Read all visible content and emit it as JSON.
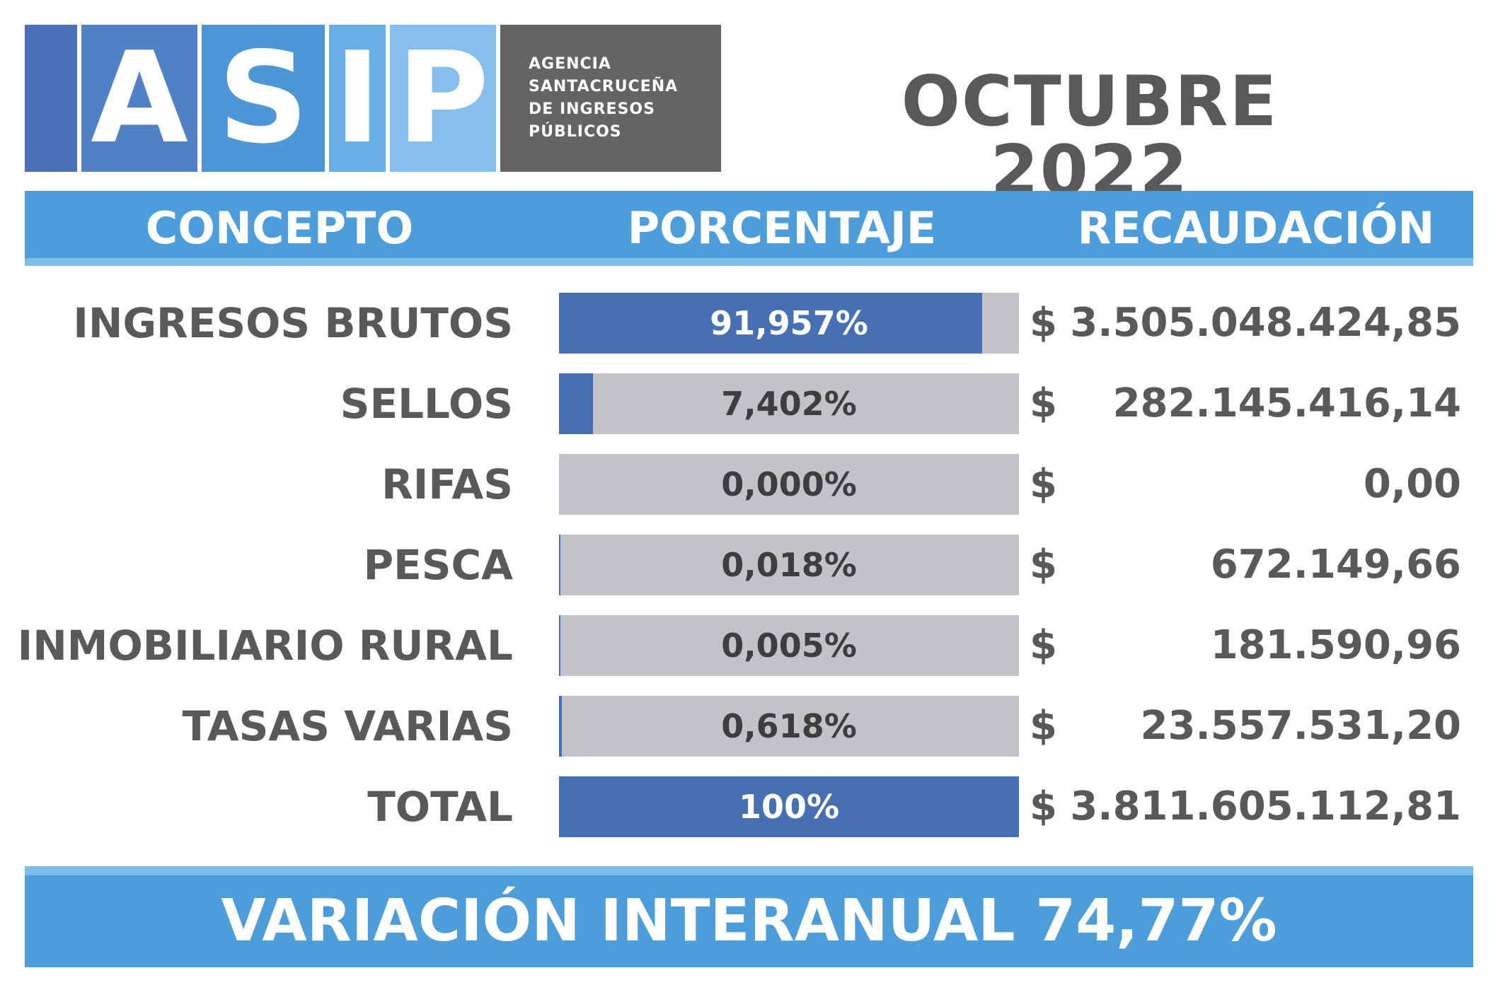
{
  "logo": {
    "letters": [
      "A",
      "S",
      "I",
      "P"
    ],
    "agency_lines": [
      "AGENCIA",
      "SANTACRUCEÑA",
      "DE INGRESOS",
      "PÚBLICOS"
    ]
  },
  "period": "OCTUBRE 2022",
  "headers": {
    "concept": "CONCEPTO",
    "percentage": "PORCENTAJE",
    "collection": "RECAUDACIÓN"
  },
  "currency_symbol": "$",
  "rows": [
    {
      "concept": "INGRESOS BRUTOS",
      "percent_label": "91,957%",
      "percent": 91.957,
      "amount": "3.505.048.424,85"
    },
    {
      "concept": "SELLOS",
      "percent_label": "7,402%",
      "percent": 7.402,
      "amount": "282.145.416,14"
    },
    {
      "concept": "RIFAS",
      "percent_label": "0,000%",
      "percent": 0.0,
      "amount": "0,00"
    },
    {
      "concept": "PESCA",
      "percent_label": "0,018%",
      "percent": 0.018,
      "amount": "672.149,66"
    },
    {
      "concept": "INMOBILIARIO RURAL",
      "percent_label": "0,005%",
      "percent": 0.005,
      "amount": "181.590,96"
    },
    {
      "concept": "TASAS VARIAS",
      "percent_label": "0,618%",
      "percent": 0.618,
      "amount": "23.557.531,20"
    },
    {
      "concept": "TOTAL",
      "percent_label": "100%",
      "percent": 100,
      "amount": "3.811.605.112,81"
    }
  ],
  "footer": "VARIACIÓN INTERANUAL 74,77%",
  "colors": {
    "bar_fill": "#466fb4",
    "bar_track": "#c2c3c7",
    "header_blue": "#4d9ddb",
    "text_gray": "#58595b"
  },
  "chart_data": {
    "type": "bar",
    "categories": [
      "INGRESOS BRUTOS",
      "SELLOS",
      "RIFAS",
      "PESCA",
      "INMOBILIARIO RURAL",
      "TASAS VARIAS",
      "TOTAL"
    ],
    "values": [
      91.957,
      7.402,
      0.0,
      0.018,
      0.005,
      0.618,
      100
    ],
    "amounts": [
      3505048424.85,
      282145416.14,
      0.0,
      672149.66,
      181590.96,
      23557531.2,
      3811605112.81
    ],
    "title": "OCTUBRE 2022",
    "xlabel": "PORCENTAJE",
    "ylabel": "CONCEPTO",
    "xlim": [
      0,
      100
    ],
    "orientation": "horizontal",
    "grid": false
  }
}
